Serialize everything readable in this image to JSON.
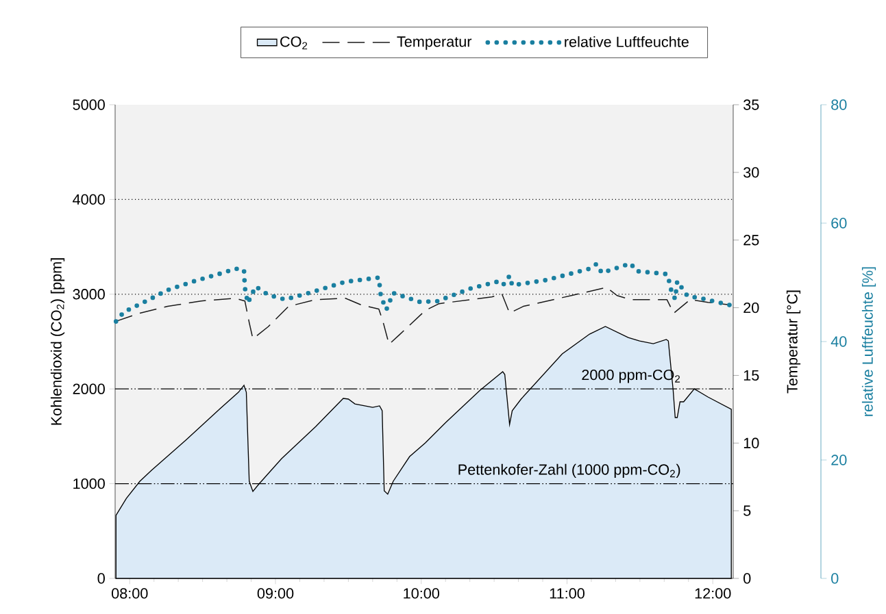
{
  "chart_data": {
    "type": "area",
    "ylabel": "Kohlendioxid (CO$_{2}$) [ppm]",
    "y2label": "Temperatur [°C]",
    "y3label": "relative Luftfeuchte [%]",
    "xlim": [
      7.9,
      12.14
    ],
    "xticks": [
      {
        "value": 8,
        "label": "08:00"
      },
      {
        "value": 9,
        "label": "09:00"
      },
      {
        "value": 10,
        "label": "10:00"
      },
      {
        "value": 11,
        "label": "11:00"
      },
      {
        "value": 12,
        "label": "12:00"
      }
    ],
    "ylim": [
      0,
      5000
    ],
    "yticks": [
      0,
      1000,
      2000,
      3000,
      4000,
      5000
    ],
    "y2lim": [
      0,
      35
    ],
    "y2ticks": [
      0,
      5,
      10,
      15,
      20,
      25,
      30,
      35
    ],
    "y3lim": [
      0,
      80
    ],
    "y3ticks": [
      0,
      20,
      40,
      60,
      80
    ],
    "legend": "top",
    "ref_lines": [
      {
        "axis": "y",
        "value": 4000,
        "line_style": "dotted"
      },
      {
        "axis": "y",
        "value": 3000,
        "line_style": "dotted"
      },
      {
        "axis": "y",
        "value": 2000,
        "line_style": "dashdotted",
        "label": "2000 ppm-CO$_{2}$"
      },
      {
        "axis": "y",
        "value": 1000,
        "line_style": "dashdotted",
        "label": "Pettenkofer-Zahl (1000 ppm-CO$_{2}$)"
      }
    ],
    "series": [
      {
        "name": "CO$_{2}$",
        "color": "#dbeaf7",
        "x": [
          7.906,
          7.977,
          8.07,
          8.15,
          8.385,
          8.62,
          8.746,
          8.784,
          8.8,
          8.82,
          8.845,
          8.887,
          9.042,
          9.277,
          9.465,
          9.5,
          9.545,
          9.667,
          9.714,
          9.732,
          9.746,
          9.77,
          9.808,
          9.92,
          10.028,
          10.169,
          10.404,
          10.559,
          10.573,
          10.606,
          10.624,
          10.685,
          10.967,
          11.155,
          11.263,
          11.42,
          11.498,
          11.592,
          11.681,
          11.695,
          11.728,
          11.742,
          11.756,
          11.775,
          11.8,
          11.873,
          11.967,
          12.127
        ],
        "values": [
          665,
          845,
          1026,
          1142,
          1460,
          1792,
          1965,
          2038,
          1965,
          1026,
          918,
          997,
          1264,
          1604,
          1900,
          1893,
          1842,
          1806,
          1821,
          1770,
          925,
          889,
          1026,
          1286,
          1431,
          1647,
          1987,
          2182,
          2153,
          1626,
          1770,
          1893,
          2370,
          2579,
          2659,
          2543,
          2507,
          2478,
          2522,
          2507,
          1987,
          1698,
          1698,
          1864,
          1864,
          2001,
          1915,
          1785
        ]
      },
      {
        "name": "Temperatur",
        "type": "line",
        "axis": "y2",
        "color": "#1a1a1a",
        "line_style": "dashed",
        "x": [
          7.906,
          8.07,
          8.26,
          8.49,
          8.72,
          8.79,
          8.82,
          8.845,
          8.95,
          9.09,
          9.277,
          9.48,
          9.59,
          9.709,
          9.737,
          9.779,
          9.85,
          10.028,
          10.122,
          10.484,
          10.554,
          10.606,
          10.7,
          11.03,
          11.272,
          11.343,
          11.437,
          11.498,
          11.685,
          11.732,
          11.845,
          11.967,
          12.127
        ],
        "values": [
          19.0,
          19.6,
          20.1,
          20.5,
          20.7,
          20.5,
          18.9,
          17.7,
          18.6,
          20.1,
          20.6,
          20.7,
          20.2,
          19.9,
          19.0,
          17.3,
          18.0,
          19.8,
          20.3,
          20.8,
          21.0,
          19.6,
          20.1,
          20.9,
          21.5,
          20.9,
          20.6,
          20.6,
          20.6,
          19.6,
          20.6,
          20.4,
          20.2
        ]
      },
      {
        "name": "relative Luftfeuchte",
        "type": "line",
        "axis": "y3",
        "color": "#1a7fa0",
        "line_style": "dotted",
        "x": [
          7.906,
          7.96,
          8.094,
          8.26,
          8.43,
          8.61,
          8.728,
          8.784,
          8.79,
          8.81,
          8.864,
          8.95,
          9.066,
          9.244,
          9.48,
          9.709,
          9.723,
          9.761,
          9.808,
          9.99,
          10.108,
          10.343,
          10.521,
          10.56,
          10.606,
          10.624,
          10.859,
          11.155,
          11.202,
          11.239,
          11.437,
          11.474,
          11.685,
          11.704,
          11.718,
          11.742,
          11.756,
          11.826,
          11.939,
          12.127
        ],
        "values": [
          43.4,
          45.0,
          46.6,
          48.7,
          50.1,
          51.4,
          52.3,
          52.1,
          49.1,
          46.5,
          49.3,
          47.9,
          47.1,
          48.3,
          50.1,
          50.8,
          47.6,
          45.4,
          48.2,
          46.7,
          46.8,
          49.0,
          50.1,
          49.5,
          51.1,
          49.5,
          50.4,
          52.3,
          53.1,
          51.6,
          53.2,
          51.9,
          51.4,
          49.9,
          48.3,
          47.2,
          50.2,
          47.7,
          47.2,
          46.1
        ]
      }
    ]
  }
}
